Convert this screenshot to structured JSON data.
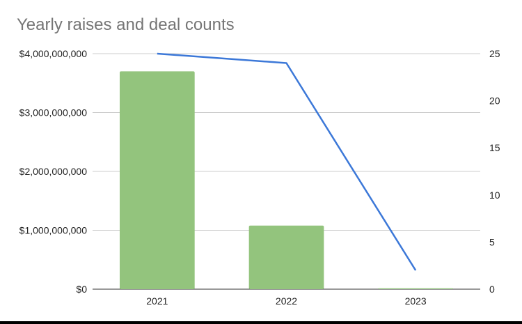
{
  "chart_data": {
    "type": "bar",
    "title": "Yearly raises and deal counts",
    "categories": [
      "2021",
      "2022",
      "2023"
    ],
    "series": [
      {
        "type": "bar",
        "axis": "left",
        "color": "#93c47d",
        "values": [
          3700000000,
          1080000000,
          15000000
        ]
      },
      {
        "type": "line",
        "axis": "right",
        "color": "#3c78d8",
        "values": [
          25,
          24,
          2
        ]
      }
    ],
    "y_left": {
      "ticks": [
        "$0",
        "$1,000,000,000",
        "$2,000,000,000",
        "$3,000,000,000",
        "$4,000,000,000"
      ],
      "ylim": [
        0,
        4000000000
      ]
    },
    "y_right": {
      "ticks": [
        "0",
        "5",
        "10",
        "15",
        "20",
        "25"
      ],
      "ylim": [
        0,
        25
      ]
    },
    "grid": true,
    "legend": "none"
  }
}
